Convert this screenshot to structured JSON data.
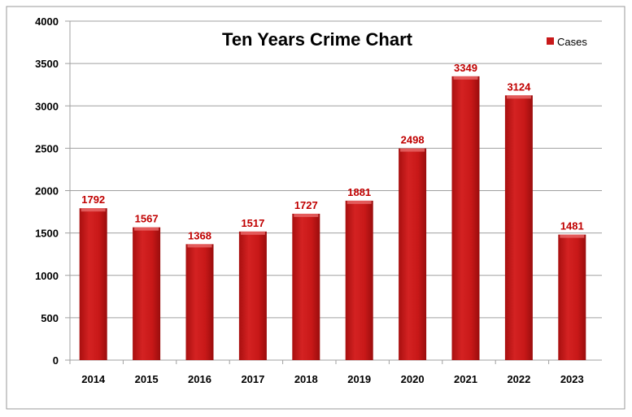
{
  "chart_data": {
    "type": "bar",
    "title": "Ten Years Crime Chart",
    "xlabel": "",
    "ylabel": "",
    "categories": [
      "2014",
      "2015",
      "2016",
      "2017",
      "2018",
      "2019",
      "2020",
      "2021",
      "2022",
      "2023"
    ],
    "series": [
      {
        "name": "Cases",
        "values": [
          1792,
          1567,
          1368,
          1517,
          1727,
          1881,
          2498,
          3349,
          3124,
          1481
        ]
      }
    ],
    "ylim": [
      0,
      4000
    ],
    "yticks": [
      0,
      500,
      1000,
      1500,
      2000,
      2500,
      3000,
      3500,
      4000
    ],
    "grid": true,
    "legend": "top-right",
    "colors": {
      "bar": "#c8191a",
      "label": "#c00000"
    }
  }
}
